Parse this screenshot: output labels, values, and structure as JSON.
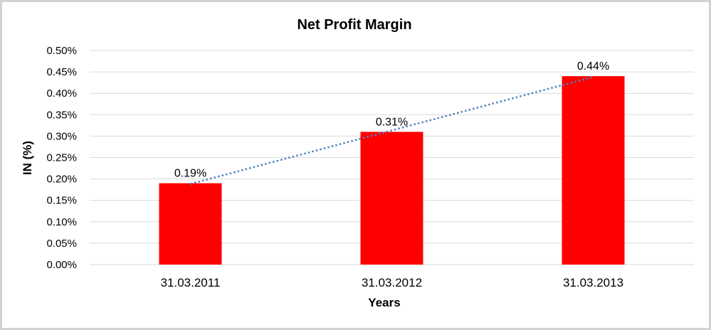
{
  "chart_data": {
    "type": "bar",
    "title": "Net Profit Margin",
    "xlabel": "Years",
    "ylabel": "IN (%)",
    "categories": [
      "31.03.2011",
      "31.03.2012",
      "31.03.2013"
    ],
    "values": [
      0.19,
      0.31,
      0.44
    ],
    "data_labels": [
      "0.19%",
      "0.31%",
      "0.44%"
    ],
    "ylim": [
      0,
      0.5
    ],
    "ytick_labels": [
      "0.00%",
      "0.05%",
      "0.10%",
      "0.15%",
      "0.20%",
      "0.25%",
      "0.30%",
      "0.35%",
      "0.40%",
      "0.45%",
      "0.50%"
    ],
    "grid": true,
    "legend": "none",
    "bar_color": "#FF0000",
    "gridline_color": "#D9D9D9",
    "text_color": "#000000",
    "trendline": {
      "type": "linear",
      "style": "dotted",
      "color": "#4F81BD"
    }
  }
}
